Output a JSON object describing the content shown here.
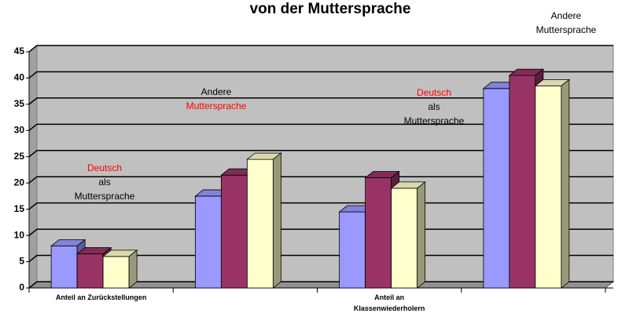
{
  "chart_data": {
    "type": "bar3d",
    "title": "von der Muttersprache",
    "categories": [
      "Anteil an Zurückstellungen",
      null,
      "Anteil an Klassenwiederholern",
      null
    ],
    "series": [
      {
        "color": "#9999ff",
        "values": [
          8,
          17.5,
          14.5,
          38
        ]
      },
      {
        "color": "#993366",
        "values": [
          6.5,
          21.5,
          21,
          40.5
        ]
      },
      {
        "color": "#ffffcc",
        "values": [
          6,
          24.5,
          19,
          38.5
        ]
      }
    ],
    "ylim": [
      0,
      45
    ],
    "yticks": [
      0,
      5,
      10,
      15,
      20,
      25,
      30,
      35,
      40,
      45
    ],
    "grid": true,
    "annotations": [
      {
        "lines": [
          {
            "text": "Deutsch",
            "color": "#ff0000"
          },
          {
            "text": "als",
            "color": "#000000"
          },
          {
            "text": "Muttersprache",
            "color": "#000000"
          }
        ]
      },
      {
        "lines": [
          {
            "text": "Andere",
            "color": "#000000"
          },
          {
            "text": "Muttersprache",
            "color": "#ff0000"
          }
        ]
      },
      {
        "lines": [
          {
            "text": "Deutsch",
            "color": "#ff0000"
          },
          {
            "text": "als",
            "color": "#000000"
          },
          {
            "text": "Muttersprache",
            "color": "#000000"
          }
        ]
      },
      {
        "lines": [
          {
            "text": "Andere",
            "color": "#000000"
          },
          {
            "text": "Muttersprache",
            "color": "#000000"
          }
        ]
      }
    ]
  }
}
